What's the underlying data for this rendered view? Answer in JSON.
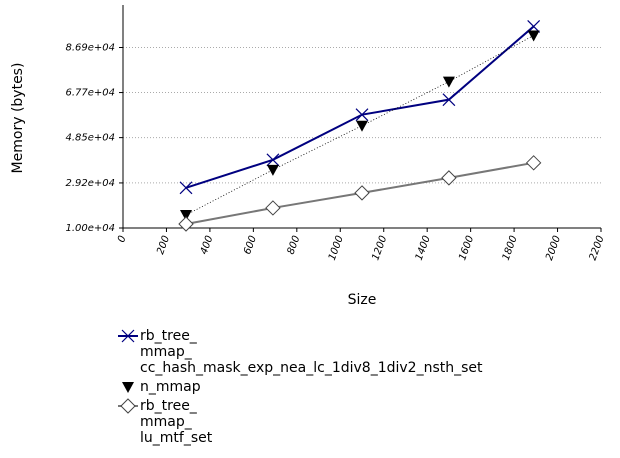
{
  "chart_data": {
    "type": "line",
    "x_label": "Size",
    "y_label": "Memory (bytes)",
    "x": [
      290,
      690,
      1100,
      1500,
      1890
    ],
    "xlim": [
      0,
      2200
    ],
    "xticks": [
      0,
      200,
      400,
      600,
      800,
      1000,
      1200,
      1400,
      1600,
      1800,
      2000,
      2200
    ],
    "ylim": [
      10000,
      105000
    ],
    "yticks": [
      {
        "value": 10000,
        "label": "1.00e+04"
      },
      {
        "value": 29200,
        "label": "2.92e+04"
      },
      {
        "value": 48500,
        "label": "4.85e+04"
      },
      {
        "value": 67700,
        "label": "6.77e+04"
      },
      {
        "value": 86900,
        "label": "8.69e+04"
      }
    ],
    "grid": true,
    "series": [
      {
        "name": "rb_tree_\nmmap_\ncc_hash_mask_exp_nea_lc_1div8_1div2_nsth_set",
        "color": "#000080",
        "marker": "x",
        "line_style": "solid",
        "values": [
          27100,
          39050,
          58280,
          64680,
          95870
        ]
      },
      {
        "name": "n_mmap",
        "color": "#000000",
        "marker": "triangle",
        "line_style": "dotted",
        "values": [
          15550,
          34780,
          53580,
          72370,
          92030
        ]
      },
      {
        "name": "rb_tree_\nmmap_\nlu_mtf_set",
        "color": "#777777",
        "marker": "diamond",
        "line_style": "solid",
        "values": [
          11710,
          18540,
          24950,
          31360,
          37770
        ]
      }
    ]
  }
}
